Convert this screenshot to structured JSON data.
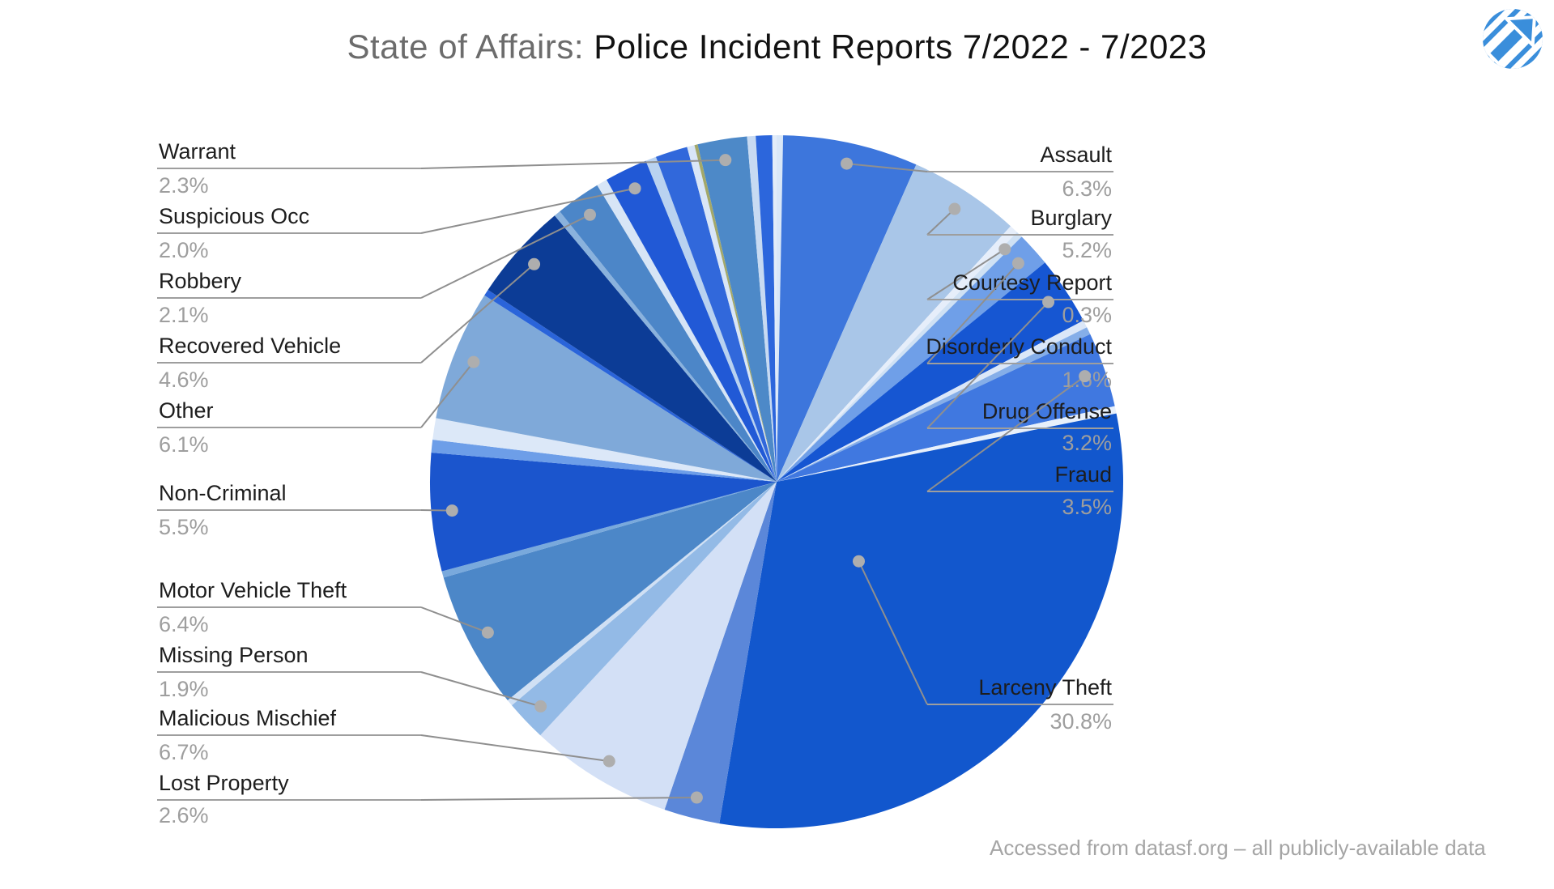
{
  "title": {
    "prefix": "State of Affairs: ",
    "main": "Police Incident Reports 7/2022 - 7/2023"
  },
  "attribution": "Accessed from datasf.org – all publicly-available data",
  "logo": {
    "name": "striped-circle-arrow-logo",
    "color": "#3a8edb"
  },
  "palette": {
    "label_text": "#1d1d1d",
    "pct_text": "#9e9e9e",
    "leader_line": "#8f8f8f",
    "underline": "#9e9e9e",
    "dot": "#aeaeae",
    "background": "#ffffff"
  },
  "chart_data": {
    "type": "pie",
    "title": "Police Incident Reports 7/2022 - 7/2023",
    "unit": "%",
    "direction": "clockwise",
    "start": "12 o'clock, categories alphabetical with small unlabeled slices interleaved",
    "legend_position": "outside callout labels",
    "categories": [
      "Assault",
      "Burglary",
      "Courtesy Report",
      "Disorderly Conduct",
      "Drug Offense",
      "Fraud",
      "Larceny Theft",
      "Lost Property",
      "Malicious Mischief",
      "Missing Person",
      "Motor Vehicle Theft",
      "Non-Criminal",
      "Other",
      "Recovered Vehicle",
      "Robbery",
      "Suspicious Occ",
      "Warrant"
    ],
    "values": [
      6.3,
      5.2,
      0.3,
      1.6,
      3.2,
      3.5,
      30.8,
      2.6,
      6.7,
      1.9,
      6.4,
      5.5,
      6.1,
      4.6,
      2.1,
      2.0,
      2.3
    ],
    "unlabeled_small_slices_total_pct": 8.9
  },
  "pie": {
    "slices": [
      {
        "label": "",
        "value": 0.3,
        "color": "#d9e7f8",
        "labeled": false
      },
      {
        "label": "Assault",
        "pct_text": "6.3%",
        "value": 6.3,
        "color": "#3d76dc",
        "labeled": true,
        "side": "right"
      },
      {
        "label": "Burglary",
        "pct_text": "5.2%",
        "value": 5.2,
        "color": "#a9c6e8",
        "labeled": true,
        "side": "right"
      },
      {
        "label": "",
        "value": 0.4,
        "color": "#e6eefa",
        "labeled": false
      },
      {
        "label": "Courtesy Report",
        "pct_text": "0.3%",
        "value": 0.3,
        "color": "#cfe1f4",
        "labeled": true,
        "side": "right"
      },
      {
        "label": "Disorderly Conduct",
        "pct_text": "1.6%",
        "value": 1.6,
        "color": "#6f9fe8",
        "labeled": true,
        "side": "right"
      },
      {
        "label": "Drug Offense",
        "pct_text": "3.2%",
        "value": 3.2,
        "color": "#1656d2",
        "labeled": true,
        "side": "right"
      },
      {
        "label": "",
        "value": 0.35,
        "color": "#dbe7f8",
        "labeled": false
      },
      {
        "label": "",
        "value": 0.35,
        "color": "#85aee8",
        "labeled": false
      },
      {
        "label": "Fraud",
        "pct_text": "3.5%",
        "value": 3.5,
        "color": "#4078e0",
        "labeled": true,
        "side": "right"
      },
      {
        "label": "",
        "value": 0.34,
        "color": "#e8f0fb",
        "labeled": false
      },
      {
        "label": "Larceny Theft",
        "pct_text": "30.8%",
        "value": 30.8,
        "color": "#1257cd",
        "labeled": true,
        "side": "right",
        "dot_factor": 0.33
      },
      {
        "label": "Lost Property",
        "pct_text": "2.6%",
        "value": 2.6,
        "color": "#5b87d9",
        "labeled": true,
        "side": "left"
      },
      {
        "label": "Malicious Mischief",
        "pct_text": "6.7%",
        "value": 6.7,
        "color": "#d3e0f6",
        "labeled": true,
        "side": "left"
      },
      {
        "label": "Missing Person",
        "pct_text": "1.9%",
        "value": 1.9,
        "color": "#93bae6",
        "labeled": true,
        "side": "left"
      },
      {
        "label": "",
        "value": 0.3,
        "color": "#d0e0f4",
        "labeled": false
      },
      {
        "label": "Motor Vehicle Theft",
        "pct_text": "6.4%",
        "value": 6.4,
        "color": "#4c87c8",
        "labeled": true,
        "side": "left"
      },
      {
        "label": "",
        "value": 0.3,
        "color": "#79a9dc",
        "labeled": false
      },
      {
        "label": "Non-Criminal",
        "pct_text": "5.5%",
        "value": 5.5,
        "color": "#1b55cd",
        "labeled": true,
        "side": "left"
      },
      {
        "label": "",
        "value": 0.6,
        "color": "#6d9ee8",
        "labeled": false
      },
      {
        "label": "",
        "value": 1.0,
        "color": "#dce8f8",
        "labeled": false
      },
      {
        "label": "Other",
        "pct_text": "6.1%",
        "value": 6.1,
        "color": "#7fa9d9",
        "labeled": true,
        "side": "left"
      },
      {
        "label": "",
        "value": 0.3,
        "color": "#2a64da",
        "labeled": false
      },
      {
        "label": "Recovered Vehicle",
        "pct_text": "4.6%",
        "value": 4.6,
        "color": "#0c3c96",
        "labeled": true,
        "side": "left"
      },
      {
        "label": "",
        "value": 0.3,
        "color": "#8ab2dd",
        "labeled": false
      },
      {
        "label": "Robbery",
        "pct_text": "2.1%",
        "value": 2.1,
        "color": "#4c86c8",
        "labeled": true,
        "side": "left"
      },
      {
        "label": "",
        "value": 0.5,
        "color": "#d7e5f6",
        "labeled": false
      },
      {
        "label": "Suspicious Occ",
        "pct_text": "2.0%",
        "value": 2.0,
        "color": "#2159d6",
        "labeled": true,
        "side": "left"
      },
      {
        "label": "",
        "value": 0.5,
        "color": "#b9d2f0",
        "labeled": false
      },
      {
        "label": "",
        "value": 1.5,
        "color": "#3168db",
        "labeled": false
      },
      {
        "label": "",
        "value": 0.35,
        "color": "#d9e6f7",
        "labeled": false
      },
      {
        "label": "",
        "value": 0.15,
        "color": "#a3a86a",
        "labeled": false
      },
      {
        "label": "Warrant",
        "pct_text": "2.3%",
        "value": 2.3,
        "color": "#4d89c8",
        "labeled": true,
        "side": "left"
      },
      {
        "label": "",
        "value": 0.4,
        "color": "#c7daf2",
        "labeled": false
      },
      {
        "label": "",
        "value": 0.76,
        "color": "#2c66dc",
        "labeled": false
      },
      {
        "label": "",
        "value": 0.2,
        "color": "#e2ecf9",
        "labeled": false
      }
    ]
  }
}
